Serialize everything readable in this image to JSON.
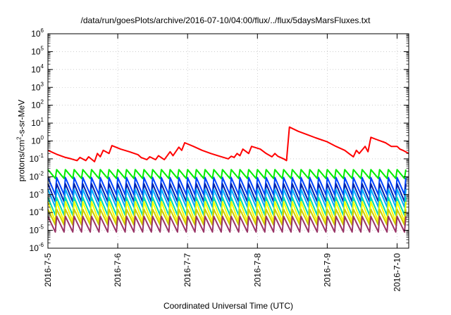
{
  "chart_data": {
    "type": "line",
    "title": "/data/run/goesPlots/archive/2016-07-10/04:00/flux/../flux/5daysMarsFluxes.txt",
    "xlabel": "Coordinated Universal Time (UTC)",
    "ylabel": {
      "base": "protons/cm",
      "sup": "2",
      "rest": "-s-sr-MeV"
    },
    "y_scale": "log",
    "ylim": [
      1e-06,
      1000000.0
    ],
    "xlim": [
      "2016-07-05 00:00",
      "2016-07-10 04:00"
    ],
    "x_ticks": [
      "2016-7-5",
      "2016-7-6",
      "2016-7-7",
      "2016-7-8",
      "2016-7-9",
      "2016-7-10"
    ],
    "y_tick_exponents": [
      -6,
      -5,
      -4,
      -3,
      -2,
      -1,
      0,
      1,
      2,
      3,
      4,
      5,
      6
    ],
    "grid": true,
    "colors": [
      "#ff0000",
      "#00ee00",
      "#0044ff",
      "#0022aa",
      "#00aaff",
      "#00ddaa",
      "#ffff00",
      "#cccc00",
      "#993366"
    ],
    "series": [
      {
        "color": "#ff0000",
        "points": [
          [
            "2016-07-05 00:00",
            0.3
          ],
          [
            "2016-07-05 03:00",
            0.18
          ],
          [
            "2016-07-05 06:00",
            0.12
          ],
          [
            "2016-07-05 08:00",
            0.1
          ],
          [
            "2016-07-05 10:00",
            0.08
          ],
          [
            "2016-07-05 11:00",
            0.12
          ],
          [
            "2016-07-05 13:00",
            0.08
          ],
          [
            "2016-07-05 14:00",
            0.13
          ],
          [
            "2016-07-05 16:00",
            0.07
          ],
          [
            "2016-07-05 17:00",
            0.2
          ],
          [
            "2016-07-05 18:00",
            0.13
          ],
          [
            "2016-07-05 19:00",
            0.3
          ],
          [
            "2016-07-05 21:00",
            0.2
          ],
          [
            "2016-07-05 22:00",
            0.55
          ],
          [
            "2016-07-06 01:00",
            0.35
          ],
          [
            "2016-07-06 04:00",
            0.25
          ],
          [
            "2016-07-06 07:00",
            0.17
          ],
          [
            "2016-07-06 08:00",
            0.12
          ],
          [
            "2016-07-06 10:00",
            0.09
          ],
          [
            "2016-07-06 11:00",
            0.13
          ],
          [
            "2016-07-06 13:00",
            0.09
          ],
          [
            "2016-07-06 14:00",
            0.15
          ],
          [
            "2016-07-06 16:00",
            0.09
          ],
          [
            "2016-07-06 18:00",
            0.25
          ],
          [
            "2016-07-06 19:00",
            0.15
          ],
          [
            "2016-07-06 21:00",
            0.45
          ],
          [
            "2016-07-06 22:00",
            0.3
          ],
          [
            "2016-07-06 23:00",
            0.8
          ],
          [
            "2016-07-07 02:00",
            0.5
          ],
          [
            "2016-07-07 05:00",
            0.3
          ],
          [
            "2016-07-07 08:00",
            0.2
          ],
          [
            "2016-07-07 11:00",
            0.14
          ],
          [
            "2016-07-07 14:00",
            0.1
          ],
          [
            "2016-07-07 15:00",
            0.14
          ],
          [
            "2016-07-07 16:00",
            0.12
          ],
          [
            "2016-07-07 17:00",
            0.2
          ],
          [
            "2016-07-07 18:00",
            0.15
          ],
          [
            "2016-07-07 19:00",
            0.35
          ],
          [
            "2016-07-07 21:00",
            0.2
          ],
          [
            "2016-07-07 22:00",
            0.5
          ],
          [
            "2016-07-08 01:00",
            0.35
          ],
          [
            "2016-07-08 03:00",
            0.2
          ],
          [
            "2016-07-08 05:00",
            0.13
          ],
          [
            "2016-07-08 06:00",
            0.2
          ],
          [
            "2016-07-08 07:00",
            0.14
          ],
          [
            "2016-07-08 09:00",
            0.1
          ],
          [
            "2016-07-08 10:00",
            0.08
          ],
          [
            "2016-07-08 11:00",
            6.0
          ],
          [
            "2016-07-08 14:00",
            3.5
          ],
          [
            "2016-07-08 17:00",
            2.3
          ],
          [
            "2016-07-08 20:00",
            1.5
          ],
          [
            "2016-07-09 00:00",
            0.9
          ],
          [
            "2016-07-09 03:00",
            0.5
          ],
          [
            "2016-07-09 06:00",
            0.3
          ],
          [
            "2016-07-09 08:00",
            0.17
          ],
          [
            "2016-07-09 09:00",
            0.13
          ],
          [
            "2016-07-09 10:00",
            0.3
          ],
          [
            "2016-07-09 11:00",
            0.2
          ],
          [
            "2016-07-09 13:00",
            0.5
          ],
          [
            "2016-07-09 14:00",
            0.25
          ],
          [
            "2016-07-09 15:00",
            1.6
          ],
          [
            "2016-07-09 17:00",
            1.2
          ],
          [
            "2016-07-09 20:00",
            0.8
          ],
          [
            "2016-07-09 22:00",
            0.5
          ],
          [
            "2016-07-10 00:00",
            0.5
          ],
          [
            "2016-07-10 01:00",
            0.35
          ],
          [
            "2016-07-10 02:00",
            0.3
          ],
          [
            "2016-07-10 04:00",
            0.2
          ]
        ]
      },
      {
        "color": "#00ee00",
        "sawtooth": {
          "peak": 0.025,
          "trough": 0.008,
          "period_hours": 3
        }
      },
      {
        "color": "#0044ff",
        "sawtooth": {
          "peak": 0.009,
          "trough": 0.001,
          "period_hours": 3
        }
      },
      {
        "color": "#0022aa",
        "sawtooth": {
          "peak": 0.004,
          "trough": 0.0004,
          "period_hours": 3
        }
      },
      {
        "color": "#00aaff",
        "sawtooth": {
          "peak": 0.002,
          "trough": 0.0002,
          "period_hours": 3
        }
      },
      {
        "color": "#00ddaa",
        "sawtooth": {
          "peak": 0.0007,
          "trough": 7e-05,
          "period_hours": 3
        }
      },
      {
        "color": "#ffff00",
        "sawtooth": {
          "peak": 0.0004,
          "trough": 3e-05,
          "period_hours": 3
        }
      },
      {
        "color": "#cccc00",
        "sawtooth": {
          "peak": 0.00015,
          "trough": 2e-05,
          "period_hours": 3
        }
      },
      {
        "color": "#993366",
        "sawtooth": {
          "peak": 6e-05,
          "trough": 8e-06,
          "period_hours": 3
        }
      }
    ]
  }
}
